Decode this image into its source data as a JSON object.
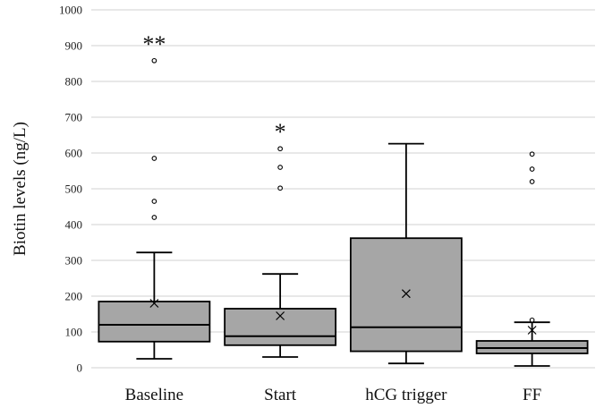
{
  "chart_data": {
    "type": "boxplot",
    "ylabel": "Biotin levels (ng/L)",
    "ylim": [
      0,
      1000
    ],
    "yticks": [
      0,
      100,
      200,
      300,
      400,
      500,
      600,
      700,
      800,
      900,
      1000
    ],
    "grid": true,
    "colors": {
      "box_fill": "#a6a6a6",
      "stroke": "#000000",
      "grid": "#d0d0d0"
    },
    "categories": [
      "Baseline",
      "Start",
      "hCG trigger",
      "FF"
    ],
    "boxes": [
      {
        "category": "Baseline",
        "min": 25,
        "q1": 73,
        "median": 120,
        "q3": 185,
        "max": 322,
        "mean": 180,
        "outliers": [
          420,
          465,
          585,
          858
        ],
        "annotation": "**"
      },
      {
        "category": "Start",
        "min": 30,
        "q1": 63,
        "median": 88,
        "q3": 165,
        "max": 262,
        "mean": 145,
        "outliers": [
          502,
          560,
          612
        ],
        "annotation": "*"
      },
      {
        "category": "hCG trigger",
        "min": 12,
        "q1": 46,
        "median": 113,
        "q3": 362,
        "max": 626,
        "mean": 207,
        "outliers": [],
        "annotation": ""
      },
      {
        "category": "FF",
        "min": 5,
        "q1": 40,
        "median": 55,
        "q3": 75,
        "max": 127,
        "mean": 105,
        "outliers": [
          133,
          520,
          555,
          597
        ],
        "annotation": ""
      }
    ]
  }
}
